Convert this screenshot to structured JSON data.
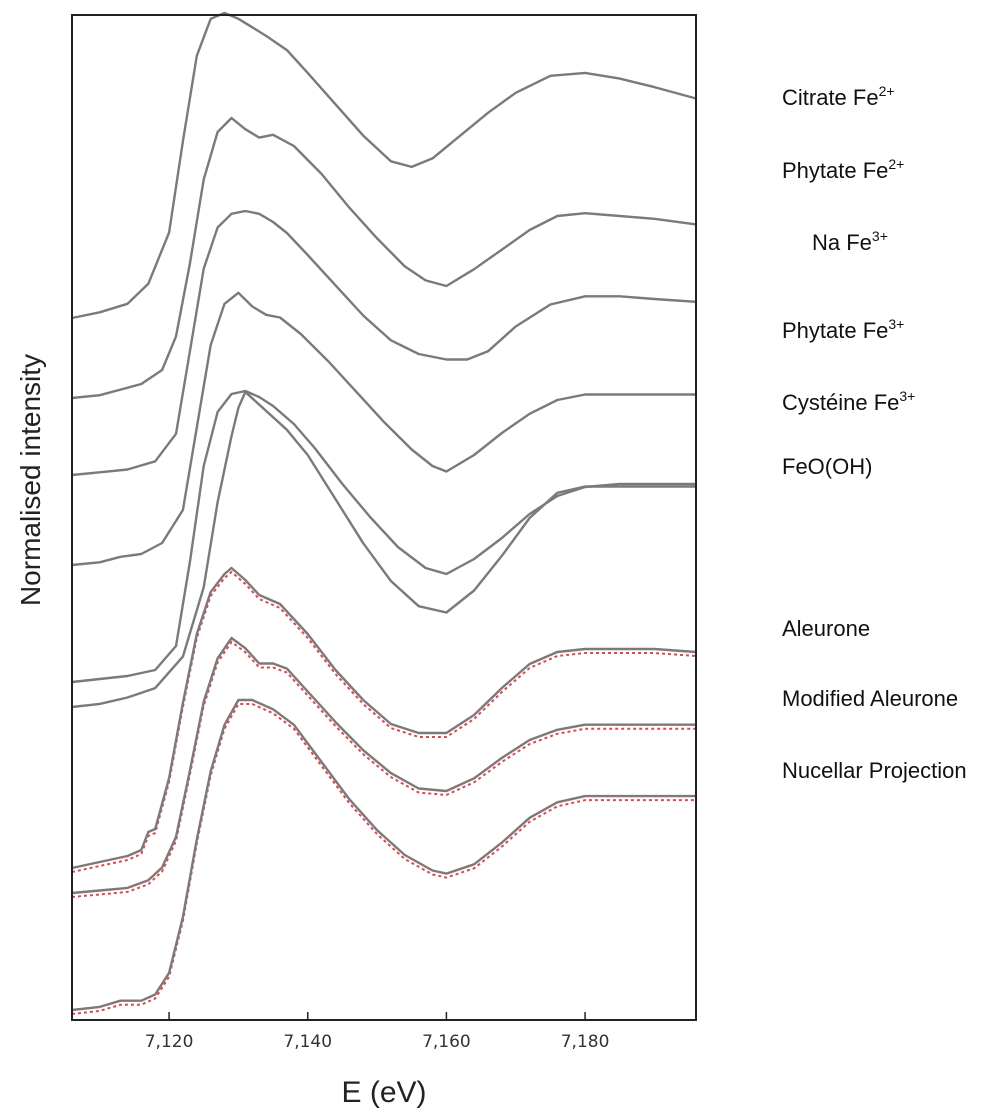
{
  "chart_data": {
    "type": "line",
    "title": "",
    "xlabel": "E (eV)",
    "ylabel": "Normalised intensity",
    "xlim": [
      7106,
      7196
    ],
    "x_ticks": [
      7120,
      7140,
      7160,
      7180
    ],
    "x_tick_labels": [
      "7,120",
      "7,140",
      "7,160",
      "7,180"
    ],
    "y_ticks_shown": false,
    "grid": false,
    "legend": "right-side inline labels",
    "colors": {
      "measured": "#7a7a7a",
      "fit": "#e0474c",
      "frame": "#222222"
    },
    "series": [
      {
        "name": "Citrate Fe",
        "sup": "2+",
        "x": [
          7106,
          7110,
          7114,
          7117,
          7120,
          7122,
          7124,
          7126,
          7128,
          7130,
          7132,
          7134,
          7137,
          7140,
          7144,
          7148,
          7152,
          7155,
          7158,
          7162,
          7166,
          7170,
          7175,
          7180,
          7185,
          7190,
          7196
        ],
        "y": [
          0.0,
          0.02,
          0.05,
          0.12,
          0.3,
          0.62,
          0.92,
          1.05,
          1.07,
          1.05,
          1.02,
          0.99,
          0.94,
          0.86,
          0.75,
          0.64,
          0.55,
          0.53,
          0.56,
          0.64,
          0.72,
          0.79,
          0.85,
          0.86,
          0.84,
          0.81,
          0.77
        ]
      },
      {
        "name": "Phytate Fe",
        "sup": "2+",
        "x": [
          7106,
          7110,
          7113,
          7116,
          7119,
          7121,
          7123,
          7125,
          7127,
          7129,
          7131,
          7133,
          7135,
          7138,
          7142,
          7146,
          7150,
          7154,
          7157,
          7160,
          7164,
          7168,
          7172,
          7176,
          7180,
          7185,
          7190,
          7196
        ],
        "y": [
          0.0,
          0.01,
          0.03,
          0.05,
          0.1,
          0.22,
          0.48,
          0.78,
          0.95,
          1.0,
          0.96,
          0.93,
          0.94,
          0.9,
          0.8,
          0.68,
          0.57,
          0.47,
          0.42,
          0.4,
          0.46,
          0.53,
          0.6,
          0.65,
          0.66,
          0.65,
          0.64,
          0.62
        ]
      },
      {
        "name": "Na Fe",
        "sup": "3+",
        "x": [
          7106,
          7110,
          7114,
          7118,
          7121,
          7123,
          7125,
          7127,
          7129,
          7131,
          7133,
          7135,
          7137,
          7140,
          7144,
          7148,
          7152,
          7156,
          7160,
          7163,
          7166,
          7170,
          7175,
          7180,
          7185,
          7190,
          7196
        ],
        "y": [
          0.0,
          0.01,
          0.02,
          0.05,
          0.15,
          0.45,
          0.75,
          0.9,
          0.95,
          0.96,
          0.95,
          0.92,
          0.88,
          0.8,
          0.69,
          0.58,
          0.49,
          0.44,
          0.42,
          0.42,
          0.45,
          0.54,
          0.62,
          0.65,
          0.65,
          0.64,
          0.63
        ]
      },
      {
        "name": "Phytate Fe",
        "sup": "3+",
        "x": [
          7106,
          7110,
          7113,
          7116,
          7119,
          7122,
          7124,
          7126,
          7128,
          7130,
          7132,
          7134,
          7136,
          7139,
          7143,
          7147,
          7151,
          7155,
          7158,
          7160,
          7164,
          7168,
          7172,
          7176,
          7180,
          7185,
          7190,
          7196
        ],
        "y": [
          0.0,
          0.01,
          0.03,
          0.04,
          0.08,
          0.2,
          0.5,
          0.8,
          0.95,
          0.99,
          0.94,
          0.91,
          0.9,
          0.84,
          0.74,
          0.63,
          0.52,
          0.42,
          0.36,
          0.34,
          0.4,
          0.48,
          0.55,
          0.6,
          0.62,
          0.62,
          0.62,
          0.62
        ]
      },
      {
        "name": "Cystéine Fe",
        "sup": "3+",
        "x": [
          7106,
          7110,
          7114,
          7118,
          7121,
          7123,
          7125,
          7127,
          7129,
          7131,
          7133,
          7135,
          7138,
          7141,
          7145,
          7149,
          7153,
          7157,
          7160,
          7164,
          7168,
          7172,
          7176,
          7180,
          7185,
          7190,
          7196
        ],
        "y": [
          0.0,
          0.01,
          0.02,
          0.04,
          0.12,
          0.4,
          0.72,
          0.9,
          0.96,
          0.97,
          0.95,
          0.92,
          0.86,
          0.78,
          0.66,
          0.55,
          0.45,
          0.38,
          0.36,
          0.41,
          0.48,
          0.56,
          0.62,
          0.65,
          0.66,
          0.66,
          0.66
        ]
      },
      {
        "name": "FeO(OH)",
        "sup": "",
        "x": [
          7106,
          7110,
          7114,
          7118,
          7122,
          7125,
          7127,
          7129,
          7130,
          7131,
          7132,
          7134,
          7137,
          7140,
          7144,
          7148,
          7152,
          7156,
          7160,
          7164,
          7168,
          7172,
          7176,
          7180,
          7185,
          7190,
          7196
        ],
        "y": [
          0.0,
          0.01,
          0.03,
          0.06,
          0.16,
          0.38,
          0.65,
          0.86,
          0.95,
          1.0,
          0.98,
          0.94,
          0.88,
          0.8,
          0.66,
          0.52,
          0.4,
          0.32,
          0.3,
          0.37,
          0.48,
          0.6,
          0.68,
          0.7,
          0.7,
          0.7,
          0.7
        ]
      },
      {
        "name": "Aleurone",
        "sup": "",
        "x": [
          7106,
          7110,
          7114,
          7116,
          7117,
          7118,
          7120,
          7122,
          7124,
          7126,
          7128,
          7129,
          7131,
          7133,
          7136,
          7140,
          7144,
          7148,
          7152,
          7156,
          7160,
          7164,
          7168,
          7172,
          7176,
          7180,
          7185,
          7190,
          7196
        ],
        "y": [
          0.0,
          0.02,
          0.04,
          0.06,
          0.12,
          0.13,
          0.3,
          0.55,
          0.78,
          0.92,
          0.98,
          1.0,
          0.96,
          0.91,
          0.88,
          0.78,
          0.66,
          0.56,
          0.48,
          0.45,
          0.45,
          0.51,
          0.6,
          0.68,
          0.72,
          0.73,
          0.73,
          0.73,
          0.72
        ]
      },
      {
        "name": "Modified Aleurone",
        "sup": "",
        "x": [
          7106,
          7110,
          7114,
          7117,
          7119,
          7121,
          7123,
          7125,
          7127,
          7129,
          7131,
          7133,
          7135,
          7137,
          7140,
          7144,
          7148,
          7152,
          7156,
          7160,
          7164,
          7168,
          7172,
          7176,
          7180,
          7185,
          7190,
          7196
        ],
        "y": [
          0.0,
          0.01,
          0.02,
          0.05,
          0.1,
          0.22,
          0.48,
          0.75,
          0.92,
          1.0,
          0.96,
          0.9,
          0.9,
          0.88,
          0.79,
          0.67,
          0.56,
          0.47,
          0.41,
          0.4,
          0.45,
          0.53,
          0.6,
          0.64,
          0.66,
          0.66,
          0.66,
          0.66
        ]
      },
      {
        "name": "Nucellar Projection",
        "sup": "",
        "x": [
          7106,
          7110,
          7113,
          7116,
          7118,
          7120,
          7122,
          7124,
          7126,
          7128,
          7130,
          7132,
          7135,
          7138,
          7142,
          7146,
          7150,
          7154,
          7158,
          7160,
          7164,
          7168,
          7172,
          7176,
          7180,
          7185,
          7190,
          7196
        ],
        "y": [
          0.0,
          0.01,
          0.03,
          0.03,
          0.05,
          0.12,
          0.3,
          0.55,
          0.77,
          0.92,
          1.0,
          1.0,
          0.97,
          0.92,
          0.8,
          0.68,
          0.58,
          0.5,
          0.45,
          0.44,
          0.47,
          0.54,
          0.62,
          0.67,
          0.69,
          0.69,
          0.69,
          0.69
        ]
      }
    ]
  }
}
